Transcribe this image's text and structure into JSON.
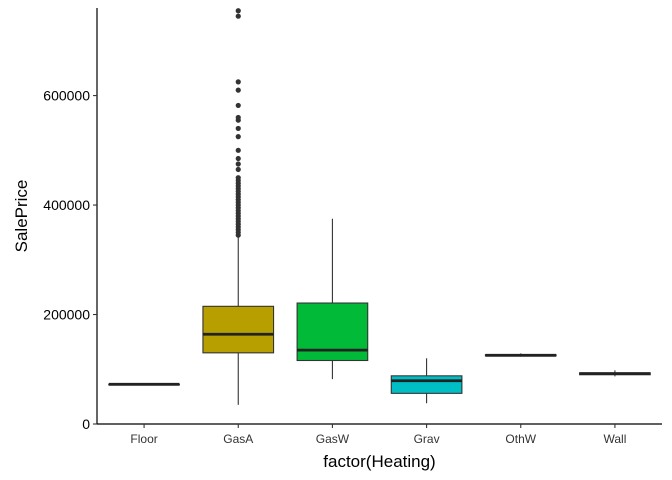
{
  "chart_data": {
    "type": "boxplot",
    "xlabel": "factor(Heating)",
    "ylabel": "SalePrice",
    "ylim": [
      0,
      760000
    ],
    "yticks": [
      0,
      200000,
      400000,
      600000
    ],
    "ytick_labels": [
      "0",
      "200000",
      "400000",
      "600000"
    ],
    "grid": false,
    "categories": [
      "Floor",
      "GasA",
      "GasW",
      "Grav",
      "OthW",
      "Wall"
    ],
    "colors": [
      "#F8766D",
      "#B79F00",
      "#00BA38",
      "#00BFC4",
      "#619CFF",
      "#F564E3"
    ],
    "boxes": [
      {
        "category": "Floor",
        "min": 72500,
        "q1": 72500,
        "median": 72500,
        "q3": 72500,
        "max": 72500,
        "outliers": []
      },
      {
        "category": "GasA",
        "min": 35000,
        "q1": 130000,
        "median": 164000,
        "q3": 215000,
        "max": 342000,
        "outliers": [
          345000,
          350000,
          355000,
          360000,
          365000,
          370000,
          375000,
          380000,
          385000,
          390000,
          395000,
          400000,
          405000,
          410000,
          415000,
          420000,
          425000,
          430000,
          435000,
          440000,
          445000,
          450000,
          465000,
          475000,
          485000,
          500000,
          525000,
          540000,
          555000,
          560000,
          582000,
          610000,
          625000,
          745000,
          755000
        ]
      },
      {
        "category": "GasW",
        "min": 82000,
        "q1": 116000,
        "median": 135000,
        "q3": 221000,
        "max": 375000,
        "outliers": []
      },
      {
        "category": "Grav",
        "min": 37900,
        "q1": 56000,
        "median": 79000,
        "q3": 88000,
        "max": 120000,
        "outliers": []
      },
      {
        "category": "OthW",
        "min": 123000,
        "q1": 124500,
        "median": 125500,
        "q3": 126500,
        "max": 129000,
        "outliers": []
      },
      {
        "category": "Wall",
        "min": 87000,
        "q1": 90000,
        "median": 92000,
        "q3": 93500,
        "max": 98000,
        "outliers": []
      }
    ]
  }
}
